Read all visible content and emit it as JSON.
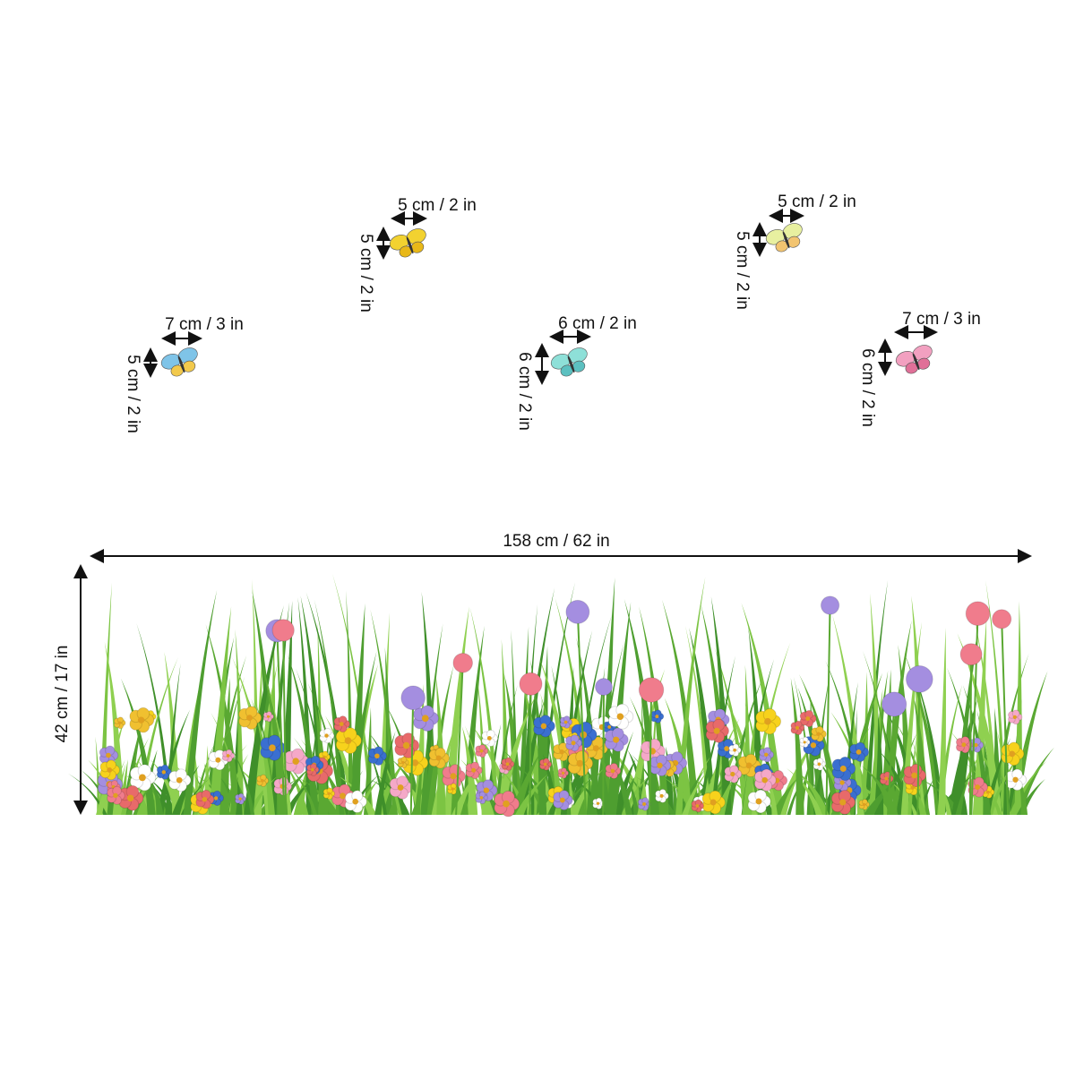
{
  "butterflies": [
    {
      "width": "7 cm / 3 in",
      "height": "5 cm / 2 in"
    },
    {
      "width": "5 cm / 2 in",
      "height": "5 cm / 2 in"
    },
    {
      "width": "6 cm / 2 in",
      "height": "6 cm / 2 in"
    },
    {
      "width": "5 cm / 2 in",
      "height": "5 cm / 2 in"
    },
    {
      "width": "7 cm / 3 in",
      "height": "6 cm / 2 in"
    }
  ],
  "grass": {
    "width": "158 cm / 62 in",
    "height": "42 cm / 17 in"
  }
}
